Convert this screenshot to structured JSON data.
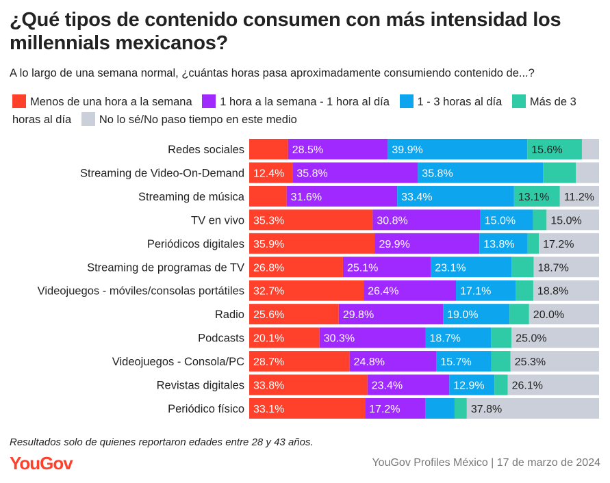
{
  "title": "¿Qué tipos de contenido consumen con más intensidad los millennials mexicanos?",
  "subtitle": "A lo largo de una semana normal, ¿cuántas horas pasa aproximadamente consumiendo contenido de...?",
  "footnote": "Resultados solo de quienes reportaron edades entre 28 y 43 años.",
  "logo": "YouGov",
  "source": "YouGov Profiles México | 17 de marzo de 2024",
  "chart_data": {
    "type": "bar",
    "orientation": "horizontal",
    "stacked": true,
    "xlim": [
      0,
      100
    ],
    "grid": false,
    "legend_position": "top",
    "categories": [
      "Redes sociales",
      "Streaming de Video-On-Demand",
      "Streaming de música",
      "TV en vivo",
      "Periódicos digitales",
      "Streaming de programas de TV",
      "Videojuegos - móviles/consolas portátiles",
      "Radio",
      "Podcasts",
      "Videojuegos - Consola/PC",
      "Revistas digitales",
      "Periódico físico"
    ],
    "series": [
      {
        "name": "Menos de una hora a la semana",
        "color": "#ff412c",
        "text_color": "#ffffff",
        "values": [
          11.1,
          12.4,
          10.7,
          35.3,
          35.9,
          26.8,
          32.7,
          25.6,
          20.1,
          28.7,
          33.8,
          33.1
        ],
        "labels": [
          "",
          "12.4%",
          "",
          "35.3%",
          "35.9%",
          "26.8%",
          "32.7%",
          "25.6%",
          "20.1%",
          "28.7%",
          "33.8%",
          "33.1%"
        ]
      },
      {
        "name": "1 hora a la semana - 1 hora al día",
        "color": "#9f29ff",
        "text_color": "#ffffff",
        "values": [
          28.5,
          35.8,
          31.6,
          30.8,
          29.9,
          25.1,
          26.4,
          29.8,
          30.3,
          24.8,
          23.4,
          17.2
        ],
        "labels": [
          "28.5%",
          "35.8%",
          "31.6%",
          "30.8%",
          "29.9%",
          "25.1%",
          "26.4%",
          "29.8%",
          "30.3%",
          "24.8%",
          "23.4%",
          "17.2%"
        ]
      },
      {
        "name": "1 - 3 horas al día",
        "color": "#0ca5ee",
        "text_color": "#ffffff",
        "values": [
          39.9,
          35.8,
          33.4,
          15.0,
          13.8,
          23.1,
          17.1,
          19.0,
          18.7,
          15.7,
          12.9,
          8.4
        ],
        "labels": [
          "39.9%",
          "35.8%",
          "33.4%",
          "15.0%",
          "13.8%",
          "23.1%",
          "17.1%",
          "19.0%",
          "18.7%",
          "15.7%",
          "12.9%",
          ""
        ]
      },
      {
        "name": "Más de 3 horas al día",
        "color": "#2fcaa6",
        "text_color": "#222222",
        "values": [
          15.6,
          9.4,
          13.1,
          3.9,
          3.2,
          6.3,
          5.0,
          5.6,
          5.9,
          5.5,
          3.8,
          3.5
        ],
        "labels": [
          "15.6%",
          "",
          "13.1%",
          "",
          "",
          "",
          "",
          "",
          "",
          "",
          "",
          ""
        ]
      },
      {
        "name": "No lo sé/No paso tiempo en este medio",
        "color": "#cbcfd9",
        "text_color": "#222222",
        "values": [
          4.9,
          6.6,
          11.2,
          15.0,
          17.2,
          18.7,
          18.8,
          20.0,
          25.0,
          25.3,
          26.1,
          37.8
        ],
        "labels": [
          "",
          "",
          "11.2%",
          "15.0%",
          "17.2%",
          "18.7%",
          "18.8%",
          "20.0%",
          "25.0%",
          "25.3%",
          "26.1%",
          "37.8%"
        ]
      }
    ]
  }
}
